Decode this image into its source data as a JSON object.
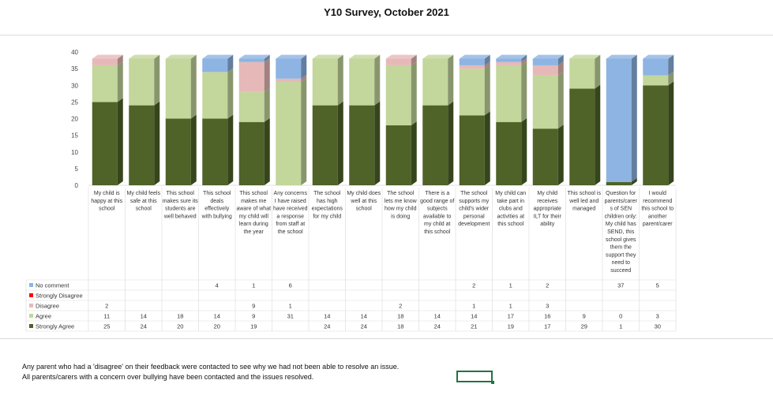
{
  "title": "Y10 Survey, October 2021",
  "notes": [
    "Any parent who had a 'disagree' on their feedback were contacted to see why we had not been able to resolve an issue.",
    "All parents/carers with a concern over bullying have been contacted and the issues resolved."
  ],
  "chart_data": {
    "type": "bar",
    "stacked": true,
    "title": "Y10 Survey, October 2021",
    "ylim": [
      0,
      40
    ],
    "yticks": [
      "0",
      "5",
      "10",
      "15",
      "20",
      "25",
      "30",
      "35",
      "40"
    ],
    "grid": false,
    "legend": "data-table-left",
    "categories": [
      "My child is happy at this school",
      "My child feels safe at this school",
      "This school makes sure its students are well behaved",
      "This school deals effectively with bullying",
      "This school makes me aware of what my child will learn during the year",
      "Any concerns I have raised have received a response from staff at the school",
      "The school has high expectations for my child",
      "My child does well at this school",
      "The school lets me know how my child is doing",
      "There is a good range of subjects available to my child at this school",
      "The school supports my child's wider personal development",
      "My child can take part in clubs and activities at this school",
      "My child receives appropriate ILT for their ability",
      "This school is well led and managed",
      "Question for parents/carers of SEN children only: My child has SEND, this school gives them the support they need to succeed",
      "I would recommend this school to another parent/carer"
    ],
    "category_lines": [
      [
        "My child is",
        "happy at this",
        "school"
      ],
      [
        "My child feels",
        "safe at this",
        "school"
      ],
      [
        "This school",
        "makes sure its",
        "students are",
        "well behaved"
      ],
      [
        "This school",
        "deals",
        "effectively",
        "with bullying"
      ],
      [
        "This school",
        "makes me",
        "aware of what",
        "my child will",
        "learn during",
        "the year"
      ],
      [
        "Any concerns",
        "I have raised",
        "have received",
        "a response",
        "from staff at",
        "the school"
      ],
      [
        "The school",
        "has high",
        "expectations",
        "for my child"
      ],
      [
        "My child does",
        "well at this",
        "school"
      ],
      [
        "The school",
        "lets me know",
        "how my child",
        "is doing"
      ],
      [
        "There is a",
        "good range of",
        "subjects",
        "available to",
        "my child at",
        "this school"
      ],
      [
        "The school",
        "supports my",
        "child's wider",
        "personal",
        "development"
      ],
      [
        "My child can",
        "take part in",
        "clubs and",
        "activities at",
        "this school"
      ],
      [
        "My child",
        "receives",
        "appropriate",
        "ILT for their",
        "ability"
      ],
      [
        "This school is",
        "well led and",
        "managed"
      ],
      [
        "Question for",
        "parents/carer",
        "s of SEN",
        "children only:",
        "My child has",
        "SEND, this",
        "school gives",
        "them the",
        "support they",
        "need to",
        "succeed"
      ],
      [
        "I would",
        "recommend",
        "this school to",
        "another",
        "parent/carer"
      ]
    ],
    "series": [
      {
        "name": "No comment",
        "color": "#8db4e2",
        "values": [
          null,
          null,
          null,
          4,
          1,
          6,
          null,
          null,
          null,
          null,
          2,
          1,
          2,
          null,
          37,
          5
        ]
      },
      {
        "name": "Strongly Disagree",
        "color": "#ff0000",
        "values": [
          null,
          null,
          null,
          null,
          null,
          null,
          null,
          null,
          null,
          null,
          null,
          null,
          null,
          null,
          null,
          null
        ]
      },
      {
        "name": "Disagree",
        "color": "#e6b9b8",
        "values": [
          2,
          null,
          null,
          null,
          9,
          1,
          null,
          null,
          2,
          null,
          1,
          1,
          3,
          null,
          null,
          null
        ]
      },
      {
        "name": "Agree",
        "color": "#c3d69b",
        "values": [
          11,
          14,
          18,
          14,
          9,
          31,
          14,
          14,
          18,
          14,
          14,
          17,
          16,
          9,
          0,
          3
        ]
      },
      {
        "name": "Strongly Agree",
        "color": "#4f6228",
        "values": [
          25,
          24,
          20,
          20,
          19,
          null,
          24,
          24,
          18,
          24,
          21,
          19,
          17,
          29,
          1,
          30
        ]
      }
    ]
  }
}
